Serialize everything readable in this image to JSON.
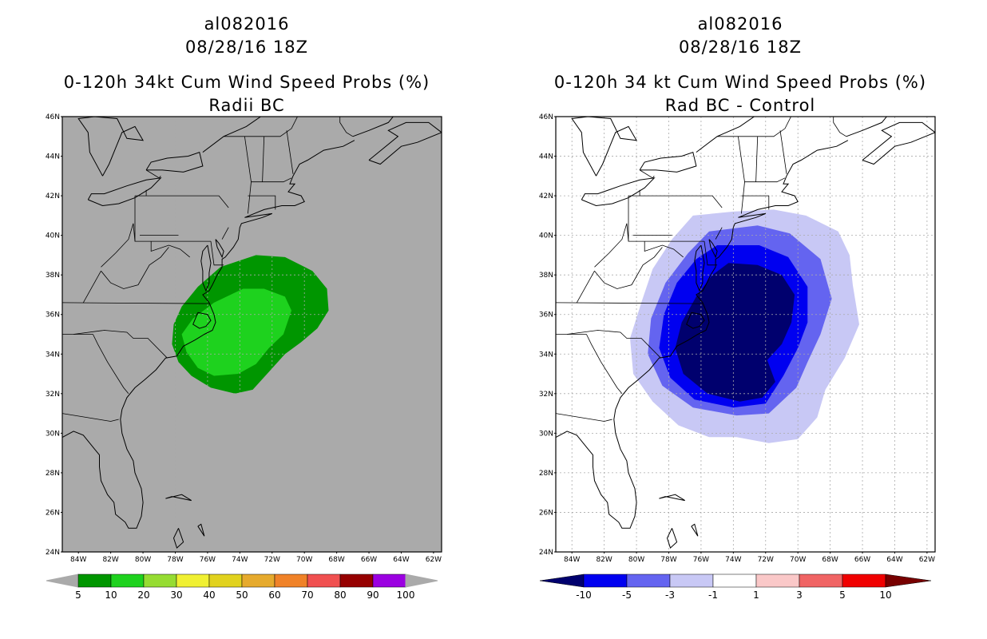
{
  "left_panel": {
    "title": {
      "line1": "al082016",
      "line2": "08/28/16 18Z",
      "line3": "0-120h 34kt Cum Wind Speed Probs (%)",
      "line4": "Radii BC"
    },
    "colorbar": {
      "labels": [
        "5",
        "10",
        "20",
        "30",
        "40",
        "50",
        "60",
        "70",
        "80",
        "90",
        "100"
      ],
      "colors": [
        "#009600",
        "#1ed21e",
        "#96dc32",
        "#f0f032",
        "#e1d21e",
        "#e6aa2d",
        "#f08228",
        "#f05050",
        "#960000",
        "#9b00e1"
      ]
    }
  },
  "right_panel": {
    "title": {
      "line1": "al082016",
      "line2": "08/28/16 18Z",
      "line3": "0-120h 34 kt Cum Wind Speed Probs (%)",
      "line4": "Rad BC - Control"
    },
    "colorbar": {
      "labels": [
        "-10",
        "-5",
        "-3",
        "-1",
        "1",
        "3",
        "5",
        "10"
      ],
      "colors": [
        "#00006e",
        "#0000f0",
        "#6464f0",
        "#c8c8f5",
        "#ffffff",
        "#fac8c8",
        "#f06464",
        "#f00000",
        "#780000"
      ]
    }
  },
  "axes": {
    "lat_labels": [
      "46N",
      "44N",
      "42N",
      "40N",
      "38N",
      "36N",
      "34N",
      "32N",
      "30N",
      "28N",
      "26N",
      "24N"
    ],
    "lon_labels": [
      "84W",
      "82W",
      "80W",
      "78W",
      "76W",
      "74W",
      "72W",
      "70W",
      "68W",
      "66W",
      "64W",
      "62W"
    ]
  },
  "colors": {
    "ocean_left": "#aaaaaa",
    "ocean_right": "#ffffff",
    "coast": "#000000",
    "grid": "#aaaaaa"
  }
}
